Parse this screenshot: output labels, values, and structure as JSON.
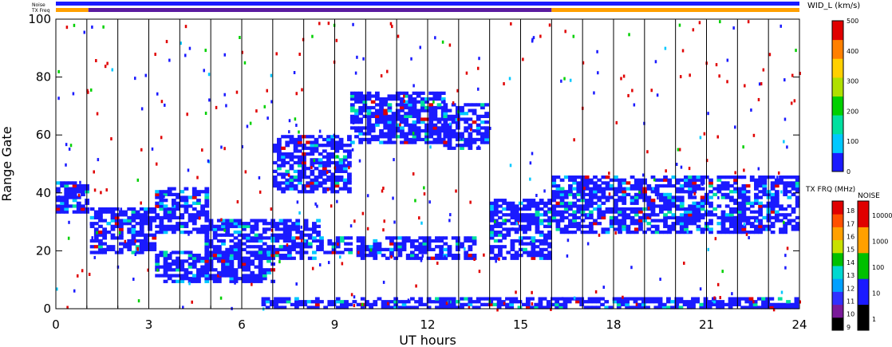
{
  "header": {
    "noise_label": "Noise",
    "txfreq_label": "TX Freq"
  },
  "chart_data": [
    {
      "type": "heatmap",
      "title": "",
      "xlabel": "UT hours",
      "ylabel": "Range Gate",
      "xlim": [
        0,
        24
      ],
      "ylim": [
        0,
        100
      ],
      "x_ticks": [
        "0",
        "3",
        "6",
        "9",
        "12",
        "15",
        "18",
        "21",
        "24"
      ],
      "y_ticks": [
        "0",
        "20",
        "40",
        "60",
        "80",
        "100"
      ],
      "grid": "vertical lines at each hour",
      "colorbar": {
        "label": "WID_L (km/s)",
        "range": [
          0,
          500
        ],
        "ticks": [
          "0",
          "100",
          "200",
          "300",
          "400",
          "500"
        ],
        "colors": [
          "#1a1aff",
          "#00c8ff",
          "#00e0a0",
          "#00d000",
          "#b0e000",
          "#ffd000",
          "#ff8000",
          "#e00000"
        ]
      },
      "echo_bands": [
        {
          "x": [
            0.0,
            1.0
          ],
          "y": [
            33,
            44
          ],
          "level": 0.05
        },
        {
          "x": [
            1.1,
            3.2
          ],
          "y": [
            19,
            35
          ],
          "level": 0.08
        },
        {
          "x": [
            3.2,
            5.0
          ],
          "y": [
            26,
            42
          ],
          "level": 0.05
        },
        {
          "x": [
            4.8,
            8.5
          ],
          "y": [
            17,
            31
          ],
          "level": 0.08
        },
        {
          "x": [
            8.5,
            9.5
          ],
          "y": [
            19,
            25
          ],
          "level": 0.05
        },
        {
          "x": [
            3.2,
            7.0
          ],
          "y": [
            9,
            20
          ],
          "level": 0.05
        },
        {
          "x": [
            9.5,
            12.5
          ],
          "y": [
            57,
            75
          ],
          "level": 0.08
        },
        {
          "x": [
            12.5,
            14.0
          ],
          "y": [
            55,
            71
          ],
          "level": 0.06
        },
        {
          "x": [
            7.0,
            9.5
          ],
          "y": [
            40,
            60
          ],
          "level": 0.05
        },
        {
          "x": [
            9.7,
            13.5
          ],
          "y": [
            17,
            25
          ],
          "level": 0.05
        },
        {
          "x": [
            14.0,
            16.0
          ],
          "y": [
            17,
            38
          ],
          "level": 0.08
        },
        {
          "x": [
            16.0,
            24.0
          ],
          "y": [
            26,
            46
          ],
          "level": 0.05
        },
        {
          "x": [
            6.5,
            24.0
          ],
          "y": [
            0,
            4
          ],
          "level": 0.05
        }
      ]
    },
    {
      "type": "heatmap",
      "title": "TX FRQ (MHz)",
      "colorbar": {
        "ticks": [
          "9",
          "10",
          "11",
          "12",
          "13",
          "14",
          "15",
          "16",
          "17",
          "18"
        ],
        "colors": [
          "#000000",
          "#7a1a9a",
          "#3030ff",
          "#00a0ff",
          "#00d8d0",
          "#00c000",
          "#c8e000",
          "#ffa000",
          "#ff5000",
          "#e00000"
        ]
      }
    },
    {
      "type": "heatmap",
      "title": "NOISE",
      "colorbar": {
        "ticks": [
          "1",
          "10",
          "100",
          "1000",
          "10000"
        ],
        "colors": [
          "#000000",
          "#1a1aff",
          "#00c000",
          "#ffa000",
          "#e00000"
        ]
      }
    }
  ],
  "status_bars": {
    "noise_color": "#1a1aff",
    "txfreq_segments": [
      {
        "from": 0.0,
        "to": 1.05,
        "color": "#ffa000"
      },
      {
        "from": 1.05,
        "to": 16.0,
        "color": "#5a1aa0"
      },
      {
        "from": 16.0,
        "to": 24.0,
        "color": "#ffa000"
      }
    ]
  }
}
